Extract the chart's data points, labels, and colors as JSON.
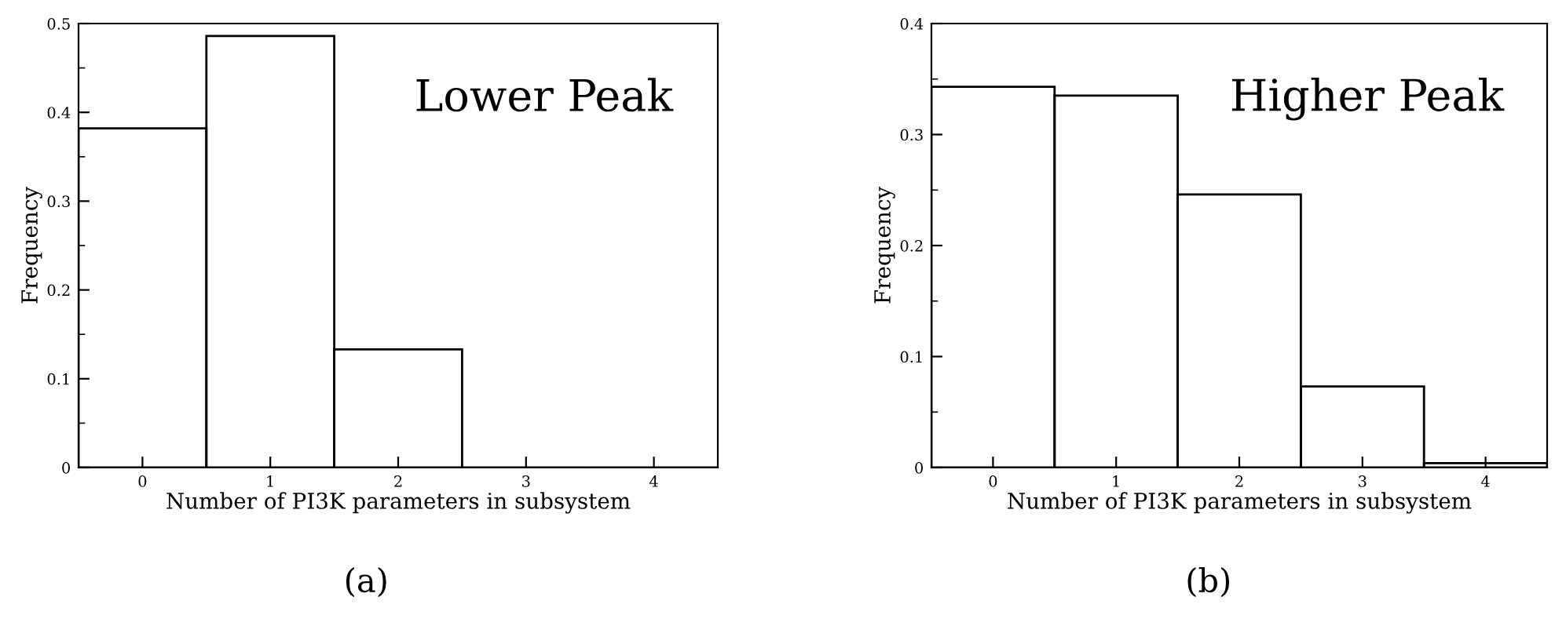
{
  "chart_data": [
    {
      "type": "histogram",
      "bins": [
        -0.5,
        0.5,
        1.5,
        2.5,
        3.5,
        4.5
      ],
      "values": [
        0.382,
        0.486,
        0.133,
        0,
        0
      ],
      "color": "#000000",
      "xlabel": "Number of PI3K parameters in subsystem",
      "ylabel": "Frequency",
      "xlim": [
        -0.5,
        4.5
      ],
      "ylim": [
        0,
        0.5
      ],
      "xticks": [
        0,
        1,
        2,
        3,
        4
      ],
      "yticks": [
        0,
        0.1,
        0.2,
        0.3,
        0.4,
        0.5
      ],
      "grid": false,
      "annotations": [
        "Lower Peak",
        "(a)"
      ]
    },
    {
      "type": "histogram",
      "bins": [
        -0.5,
        0.5,
        1.5,
        2.5,
        3.5,
        4.5
      ],
      "values": [
        0.343,
        0.335,
        0.246,
        0.073,
        0.004
      ],
      "color": "#000000",
      "xlabel": "Number of PI3K parameters in subsystem",
      "ylabel": "Frequency",
      "xlim": [
        -0.5,
        4.5
      ],
      "ylim": [
        0,
        0.4
      ],
      "xticks": [
        0,
        1,
        2,
        3,
        4
      ],
      "yticks": [
        0,
        0.1,
        0.2,
        0.3,
        0.4
      ],
      "grid": false,
      "annotations": [
        "Higher Peak",
        "(b)"
      ]
    }
  ]
}
